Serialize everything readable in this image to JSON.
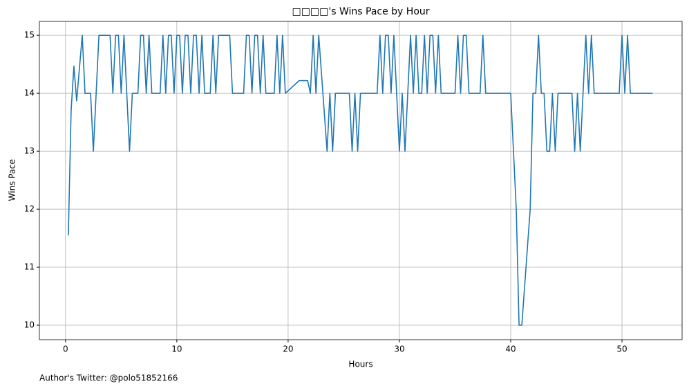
{
  "chart_data": {
    "type": "line",
    "title": "□□□□'s Wins Pace by Hour",
    "x_label": "Hours",
    "y_label": "Wins Pace",
    "footer": "Author's Twitter: @polo51852166",
    "color": "#1f77b4",
    "grid": true,
    "xlim": [
      -2.35,
      55.4
    ],
    "ylim": [
      9.75,
      15.24
    ],
    "xticks": [
      0,
      10,
      20,
      30,
      40,
      50
    ],
    "yticks": [
      10,
      11,
      12,
      13,
      14,
      15
    ],
    "x": [
      0.25,
      0.5,
      0.75,
      1.0,
      1.5,
      1.75,
      2.25,
      2.5,
      3.0,
      4.0,
      4.25,
      4.5,
      4.75,
      5.0,
      5.25,
      5.75,
      6.0,
      6.5,
      6.75,
      7.0,
      7.25,
      7.5,
      7.75,
      8.5,
      8.75,
      9.0,
      9.25,
      9.5,
      9.75,
      10.0,
      10.25,
      10.5,
      10.75,
      11.0,
      11.25,
      11.5,
      11.75,
      12.0,
      12.25,
      12.5,
      13.0,
      13.25,
      13.5,
      13.75,
      14.75,
      15.0,
      16.0,
      16.25,
      16.5,
      16.75,
      17.0,
      17.25,
      17.5,
      17.75,
      18.0,
      18.75,
      19.0,
      19.25,
      19.5,
      19.75,
      21.0,
      21.75,
      22.0,
      22.25,
      22.5,
      22.75,
      23.5,
      23.75,
      24.0,
      24.25,
      25.5,
      25.75,
      26.0,
      26.25,
      26.5,
      28.0,
      28.25,
      28.5,
      28.75,
      29.0,
      29.25,
      29.5,
      30.0,
      30.25,
      30.5,
      31.0,
      31.25,
      31.5,
      31.75,
      32.0,
      32.25,
      32.5,
      32.75,
      33.0,
      33.25,
      33.5,
      33.75,
      35.0,
      35.25,
      35.5,
      35.75,
      36.0,
      36.25,
      37.25,
      37.5,
      37.75,
      40.0,
      40.5,
      40.75,
      41.0,
      41.75,
      42.0,
      42.25,
      42.5,
      42.75,
      43.0,
      43.25,
      43.5,
      43.75,
      44.0,
      44.25,
      45.5,
      45.75,
      46.0,
      46.25,
      46.75,
      47.0,
      47.25,
      47.5,
      49.75,
      50.0,
      50.25,
      50.5,
      50.75,
      52.75
    ],
    "values": [
      11.55,
      13.7,
      14.47,
      13.87,
      15,
      14,
      14,
      13,
      15,
      15,
      14,
      15,
      15,
      14,
      15,
      13,
      14,
      14,
      15,
      15,
      14,
      15,
      14,
      14,
      15,
      14,
      15,
      15,
      14,
      15,
      15,
      14,
      15,
      15,
      14,
      15,
      15,
      14,
      15,
      14,
      14,
      15,
      14,
      15,
      15,
      14,
      14,
      15,
      15,
      14,
      15,
      15,
      14,
      15,
      14,
      14,
      15,
      14,
      15,
      14,
      14.22,
      14.22,
      14,
      15,
      14,
      15,
      13,
      14,
      13,
      14,
      14,
      13,
      14,
      13,
      14,
      14,
      15,
      14,
      15,
      15,
      14,
      15,
      13,
      14,
      13,
      15,
      14,
      15,
      14,
      14,
      15,
      14,
      15,
      15,
      14,
      15,
      14,
      14,
      15,
      14,
      15,
      15,
      14,
      14,
      15,
      14,
      14,
      12,
      10,
      10,
      12,
      14,
      14,
      15,
      14,
      14,
      13,
      13,
      14,
      13,
      14,
      14,
      13,
      14,
      13,
      15,
      14,
      15,
      14,
      14,
      15,
      14,
      15,
      14,
      14
    ]
  }
}
